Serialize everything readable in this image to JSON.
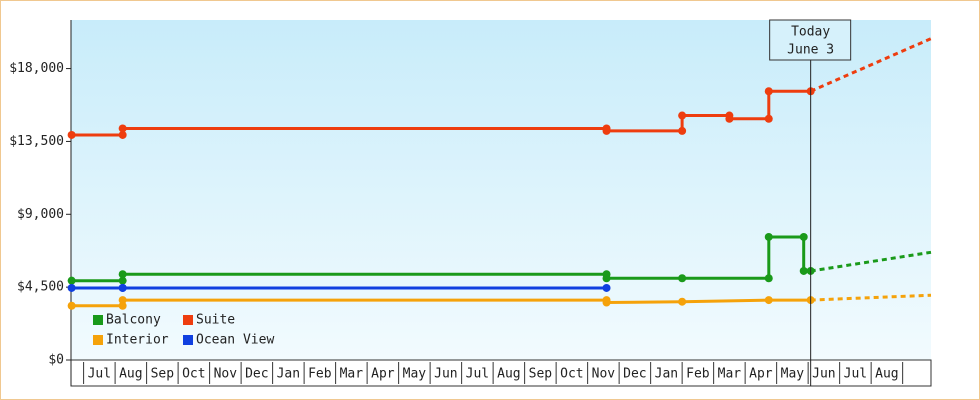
{
  "chart_data": {
    "type": "line",
    "ylim": [
      0,
      21000
    ],
    "yticks": [
      {
        "value": 0,
        "label": "$0"
      },
      {
        "value": 4500,
        "label": "$4,500"
      },
      {
        "value": 9000,
        "label": "$9,000"
      },
      {
        "value": 13500,
        "label": "$13,500"
      },
      {
        "value": 18000,
        "label": "$18,000"
      }
    ],
    "xlim": [
      -0.4,
      26.9
    ],
    "xticks": [
      {
        "value": 0.5,
        "label": "Jul"
      },
      {
        "value": 1.5,
        "label": "Aug"
      },
      {
        "value": 2.5,
        "label": "Sep"
      },
      {
        "value": 3.5,
        "label": "Oct"
      },
      {
        "value": 4.5,
        "label": "Nov"
      },
      {
        "value": 5.5,
        "label": "Dec"
      },
      {
        "value": 6.5,
        "label": "Jan"
      },
      {
        "value": 7.5,
        "label": "Feb"
      },
      {
        "value": 8.5,
        "label": "Mar"
      },
      {
        "value": 9.5,
        "label": "Apr"
      },
      {
        "value": 10.5,
        "label": "May"
      },
      {
        "value": 11.5,
        "label": "Jun"
      },
      {
        "value": 12.5,
        "label": "Jul"
      },
      {
        "value": 13.5,
        "label": "Aug"
      },
      {
        "value": 14.5,
        "label": "Sep"
      },
      {
        "value": 15.5,
        "label": "Oct"
      },
      {
        "value": 16.5,
        "label": "Nov"
      },
      {
        "value": 17.5,
        "label": "Dec"
      },
      {
        "value": 18.5,
        "label": "Jan"
      },
      {
        "value": 19.5,
        "label": "Feb"
      },
      {
        "value": 20.5,
        "label": "Mar"
      },
      {
        "value": 21.5,
        "label": "Apr"
      },
      {
        "value": 22.5,
        "label": "May"
      },
      {
        "value": 23.5,
        "label": "Jun"
      },
      {
        "value": 24.5,
        "label": "Jul"
      },
      {
        "value": 25.5,
        "label": "Aug"
      }
    ],
    "annotation": {
      "x": 23.08,
      "lines": [
        "Today",
        "June 3"
      ]
    },
    "series": [
      {
        "name": "Balcony",
        "color": "#1a9a1a",
        "x": [
          -0.38,
          1.24,
          1.24,
          16.6,
          16.6,
          19.0,
          21.75,
          21.75,
          22.86,
          22.86,
          23.08
        ],
        "values": [
          4900,
          4900,
          5300,
          5300,
          5050,
          5050,
          5050,
          7600,
          7600,
          5500,
          5500
        ],
        "forecast": {
          "x": [
            23.08,
            26.9
          ],
          "values": [
            5500,
            6650
          ]
        }
      },
      {
        "name": "Suite",
        "color": "#ee3d0f",
        "x": [
          -0.38,
          1.24,
          1.24,
          16.6,
          16.6,
          19.0,
          19.0,
          20.5,
          20.5,
          21.75,
          21.75,
          23.08
        ],
        "values": [
          13900,
          13900,
          14300,
          14300,
          14150,
          14150,
          15100,
          15100,
          14900,
          14900,
          16600,
          16600
        ],
        "forecast": {
          "x": [
            23.08,
            26.9
          ],
          "values": [
            16600,
            19850
          ]
        }
      },
      {
        "name": "Interior",
        "color": "#f5a20a",
        "x": [
          -0.38,
          1.24,
          1.24,
          16.6,
          16.6,
          19.0,
          21.75,
          23.08
        ],
        "values": [
          3350,
          3350,
          3700,
          3700,
          3550,
          3600,
          3700,
          3700
        ],
        "forecast": {
          "x": [
            23.08,
            26.9
          ],
          "values": [
            3700,
            4000
          ]
        }
      },
      {
        "name": "Ocean View",
        "color": "#1040e0",
        "x": [
          -0.38,
          1.24,
          1.24,
          16.6
        ],
        "values": [
          4450,
          4450,
          4450,
          4450
        ]
      }
    ]
  }
}
